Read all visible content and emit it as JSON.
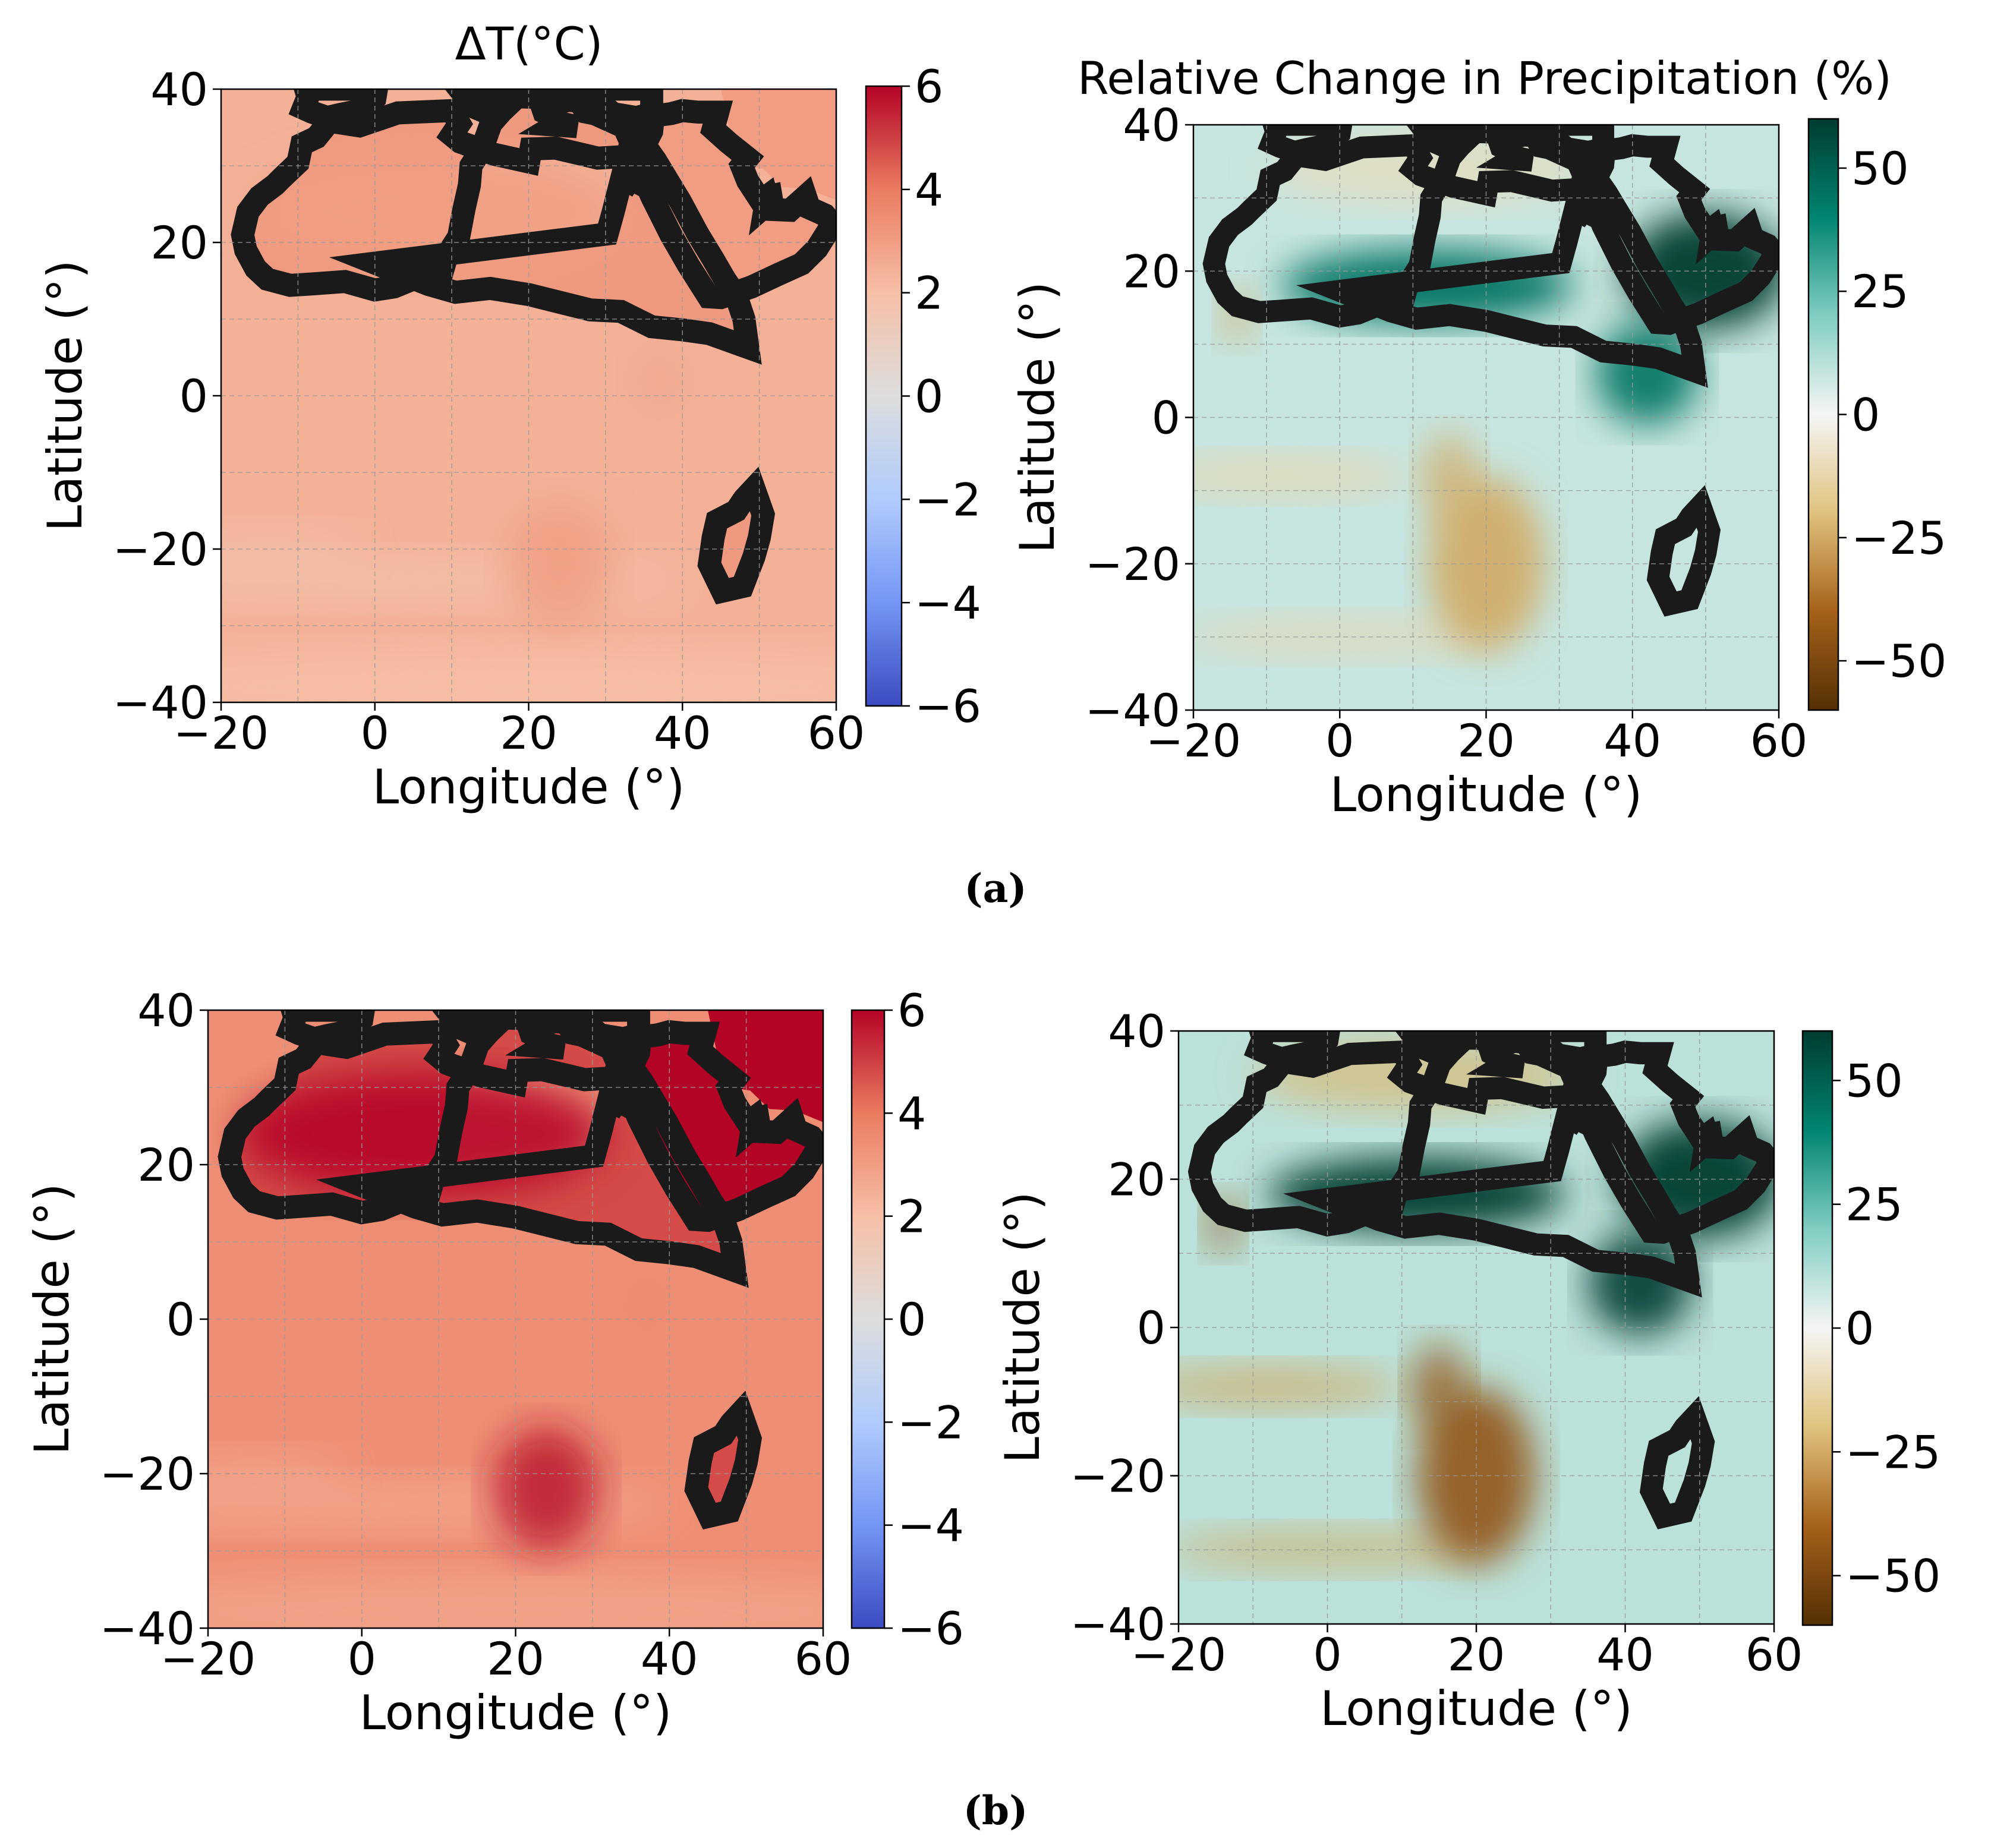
{
  "figure": {
    "panels": [
      {
        "id": "a",
        "label": "(a)"
      },
      {
        "id": "b",
        "label": "(b)"
      }
    ]
  },
  "colors": {
    "temp_cmap": [
      "#3b4cc0",
      "#7396f5",
      "#b0cbfc",
      "#dcdddd",
      "#f6bfa6",
      "#ea7b60",
      "#b40426"
    ],
    "precip_cmap": [
      "#543005",
      "#a6611a",
      "#dfc27d",
      "#f5f5f5",
      "#80cdc1",
      "#018571",
      "#003c30"
    ],
    "coastline": "#1a1a1a",
    "grid": "#9a9a9a"
  },
  "chart_data": [
    {
      "type": "heatmap",
      "panel": "a",
      "variable": "temperature",
      "title": "ΔT(°C)",
      "xlabel": "Longitude (°)",
      "ylabel": "Latitude (°)",
      "xlim": [
        -20,
        60
      ],
      "ylim": [
        -40,
        40
      ],
      "xticks": [
        "−20",
        "0",
        "20",
        "40",
        "60"
      ],
      "yticks": [
        "40",
        "20",
        "0",
        "−20",
        "−40"
      ],
      "colorbar": {
        "range": [
          -6,
          6
        ],
        "ticks": [
          "6",
          "4",
          "2",
          "0",
          "−2",
          "−4",
          "−6"
        ]
      },
      "values": {
        "ocean": 2.4,
        "land": 3.1,
        "south_ocean": 2.0,
        "band": 1.7,
        "north_africa": 3.0,
        "arabia": 3.0,
        "south_africa": 3.0,
        "east_coast": 2.7
      }
    },
    {
      "type": "heatmap",
      "panel": "a",
      "variable": "precipitation",
      "title": "Relative Change in Precipitation (%)",
      "xlabel": "Longitude (°)",
      "ylabel": "Latitude (°)",
      "xlim": [
        -20,
        60
      ],
      "ylim": [
        -40,
        40
      ],
      "xticks": [
        "−20",
        "0",
        "20",
        "40",
        "60"
      ],
      "yticks": [
        "40",
        "20",
        "0",
        "−20",
        "−40"
      ],
      "colorbar": {
        "range": [
          -60,
          60
        ],
        "ticks": [
          "50",
          "25",
          "0",
          "−25",
          "−50"
        ]
      },
      "values": {
        "background": 8,
        "southern_africa": -25,
        "sahel_band": 45,
        "east_africa": 45,
        "atlantic_band": -12,
        "mediterranean": -10,
        "arabia": 60
      }
    },
    {
      "type": "heatmap",
      "panel": "b",
      "variable": "temperature",
      "xlabel": "Longitude (°)",
      "ylabel": "Latitude (°)",
      "xlim": [
        -20,
        60
      ],
      "ylim": [
        -40,
        40
      ],
      "xticks": [
        "−20",
        "0",
        "20",
        "40",
        "60"
      ],
      "yticks": [
        "40",
        "20",
        "0",
        "−20",
        "−40"
      ],
      "colorbar": {
        "range": [
          -6,
          6
        ],
        "ticks": [
          "6",
          "4",
          "2",
          "0",
          "−2",
          "−4",
          "−6"
        ]
      },
      "values": {
        "ocean": 3.4,
        "land": 4.8,
        "north_africa": 6.0,
        "arabia": 6.0,
        "south_africa": 5.7,
        "south_ocean": 2.8,
        "band": 2.5,
        "east_coast": 3.6
      }
    },
    {
      "type": "heatmap",
      "panel": "b",
      "variable": "precipitation",
      "xlabel": "Longitude (°)",
      "ylabel": "Latitude (°)",
      "xlim": [
        -20,
        60
      ],
      "ylim": [
        -40,
        40
      ],
      "xticks": [
        "−20",
        "0",
        "20",
        "40",
        "60"
      ],
      "yticks": [
        "40",
        "20",
        "0",
        "−20",
        "−40"
      ],
      "colorbar": {
        "range": [
          -60,
          60
        ],
        "ticks": [
          "50",
          "25",
          "0",
          "−25",
          "−50"
        ]
      },
      "values": {
        "background": 10,
        "southern_africa": -45,
        "sahel_band": 60,
        "east_africa": 60,
        "atlantic_band": -25,
        "mediterranean": -22,
        "arabia": 60
      }
    }
  ]
}
